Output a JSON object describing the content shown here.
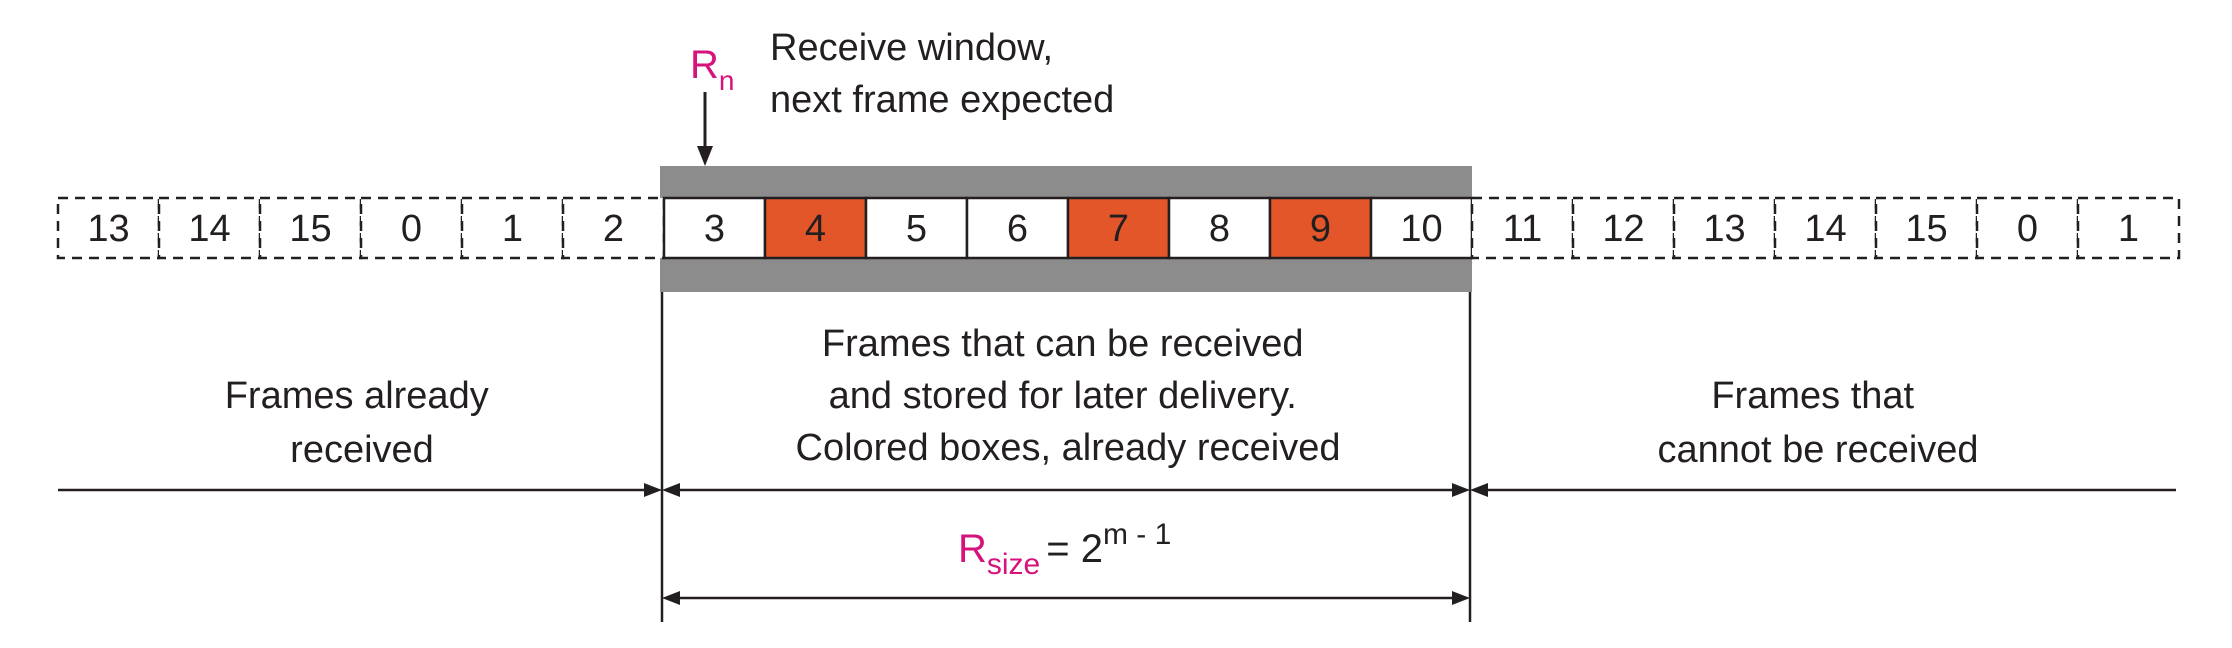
{
  "pointer": {
    "symbol": "R",
    "subscript": "n"
  },
  "window_label": {
    "line1": "Receive window,",
    "line2": "next frame expected"
  },
  "frames_left": [
    "13",
    "14",
    "15",
    "0",
    "1",
    "2"
  ],
  "frames_window": [
    {
      "label": "3",
      "received": false
    },
    {
      "label": "4",
      "received": true
    },
    {
      "label": "5",
      "received": false
    },
    {
      "label": "6",
      "received": false
    },
    {
      "label": "7",
      "received": true
    },
    {
      "label": "8",
      "received": false
    },
    {
      "label": "9",
      "received": true
    },
    {
      "label": "10",
      "received": false
    }
  ],
  "frames_right": [
    "11",
    "12",
    "13",
    "14",
    "15",
    "0",
    "1"
  ],
  "region_left": {
    "line1": "Frames already",
    "line2": "received"
  },
  "region_middle": {
    "line1": "Frames that can be received",
    "line2": "and stored for later delivery.",
    "line3": "Colored boxes, already received"
  },
  "region_right": {
    "line1": "Frames that",
    "line2": "cannot be received"
  },
  "formula": {
    "symbol": "R",
    "subscript": "size",
    "equals": "= 2",
    "exponent": "m - 1"
  },
  "colors": {
    "received_fill": "#e3562a",
    "window_band": "#8c8c8c",
    "accent_text": "#d6127c",
    "stroke": "#231f20"
  }
}
